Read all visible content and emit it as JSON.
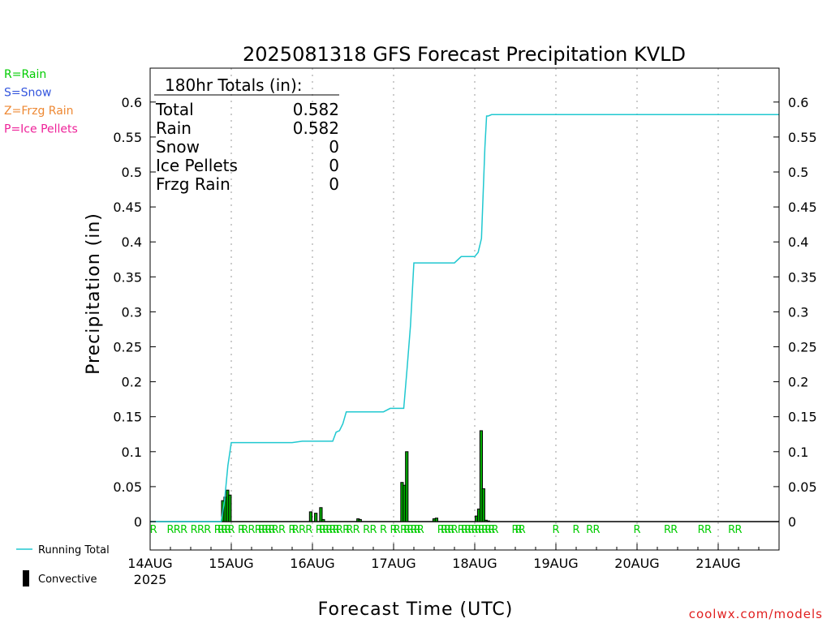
{
  "chart_data": {
    "type": "bar",
    "title": "2025081318 GFS Forecast Precipitation KVLD",
    "xlabel": "Forecast Time (UTC)",
    "ylabel": "Precipitation (in)",
    "ylim": [
      0,
      0.64
    ],
    "yticks": [
      "0",
      "0.05",
      "0.1",
      "0.15",
      "0.2",
      "0.25",
      "0.3",
      "0.35",
      "0.4",
      "0.45",
      "0.5",
      "0.55",
      "0.6"
    ],
    "x_range_hours": [
      -18,
      168
    ],
    "x_date_labels": [
      {
        "label": "14AUG",
        "hour": -18
      },
      {
        "label": "15AUG",
        "hour": 6
      },
      {
        "label": "16AUG",
        "hour": 30
      },
      {
        "label": "17AUG",
        "hour": 54
      },
      {
        "label": "18AUG",
        "hour": 78
      },
      {
        "label": "19AUG",
        "hour": 102
      },
      {
        "label": "20AUG",
        "hour": 126
      },
      {
        "label": "21AUG",
        "hour": 150
      }
    ],
    "x_year_label": "2025",
    "series": [
      {
        "name": "Running Total",
        "type": "line",
        "color": "#20c8d0",
        "points": [
          [
            -18,
            0
          ],
          [
            3,
            0
          ],
          [
            4,
            0.03
          ],
          [
            5,
            0.08
          ],
          [
            6,
            0.113
          ],
          [
            24,
            0.113
          ],
          [
            27,
            0.115
          ],
          [
            36,
            0.115
          ],
          [
            37,
            0.128
          ],
          [
            38,
            0.13
          ],
          [
            39,
            0.14
          ],
          [
            40,
            0.157
          ],
          [
            51,
            0.157
          ],
          [
            53,
            0.162
          ],
          [
            57,
            0.162
          ],
          [
            58,
            0.22
          ],
          [
            59,
            0.28
          ],
          [
            60,
            0.37
          ],
          [
            72,
            0.37
          ],
          [
            74,
            0.379
          ],
          [
            78,
            0.379
          ],
          [
            79,
            0.385
          ],
          [
            80,
            0.405
          ],
          [
            81,
            0.535
          ],
          [
            81.5,
            0.58
          ],
          [
            82,
            0.58
          ],
          [
            83,
            0.582
          ],
          [
            168,
            0.582
          ]
        ]
      },
      {
        "name": "Convective",
        "type": "bar",
        "color": "#000000",
        "fill": "#00aa00",
        "hours": [
          3.5,
          4.2,
          4.9,
          5.6,
          29.5,
          31,
          32.5,
          33.2,
          43.5,
          44.1,
          56.5,
          57.2,
          57.9,
          66,
          66.7,
          78.5,
          79.2,
          79.9,
          80.6,
          81.3,
          82
        ],
        "values": [
          0.03,
          0.035,
          0.045,
          0.038,
          0.014,
          0.012,
          0.02,
          0.003,
          0.004,
          0.003,
          0.056,
          0.052,
          0.1,
          0.004,
          0.005,
          0.008,
          0.018,
          0.13,
          0.047,
          0.002,
          0.001
        ]
      }
    ],
    "precip_type_markers": {
      "symbol": "R",
      "color": "#00cc00",
      "hours": [
        -17,
        -12,
        -10,
        -8,
        -5,
        -3,
        -1,
        2,
        3,
        4,
        5,
        6,
        9,
        10,
        12,
        14,
        15,
        16,
        17,
        18,
        19,
        21,
        24,
        25,
        27,
        29,
        32,
        33,
        34,
        35,
        36,
        37,
        38,
        40,
        41,
        43,
        46,
        48,
        51,
        54,
        55,
        57,
        58,
        59,
        60,
        61,
        62,
        68,
        69,
        70,
        71,
        72,
        74,
        75,
        76,
        77,
        78,
        79,
        80,
        81,
        82,
        83,
        84,
        90,
        91,
        92,
        102,
        108,
        112,
        114,
        126,
        135,
        137,
        145,
        147,
        154,
        156
      ]
    },
    "totals_box": {
      "header": "180hr Totals (in):",
      "rows": [
        {
          "label": "Total",
          "value": "0.582"
        },
        {
          "label": "Rain",
          "value": "0.582"
        },
        {
          "label": "Snow",
          "value": "0"
        },
        {
          "label": "Ice Pellets",
          "value": "0"
        },
        {
          "label": "Frzg Rain",
          "value": "0"
        }
      ]
    },
    "type_legend": [
      {
        "text": "R=Rain",
        "color": "#00cc00"
      },
      {
        "text": "S=Snow",
        "color": "#3355dd"
      },
      {
        "text": "Z=Frzg Rain",
        "color": "#ee8833"
      },
      {
        "text": "P=Ice Pellets",
        "color": "#ee2299"
      }
    ],
    "bottom_legend": {
      "running_total": "Running Total",
      "convective": "Convective"
    },
    "credit": "coolwx.com/models",
    "grid": "vertical dotted lines at 00Z each day"
  }
}
